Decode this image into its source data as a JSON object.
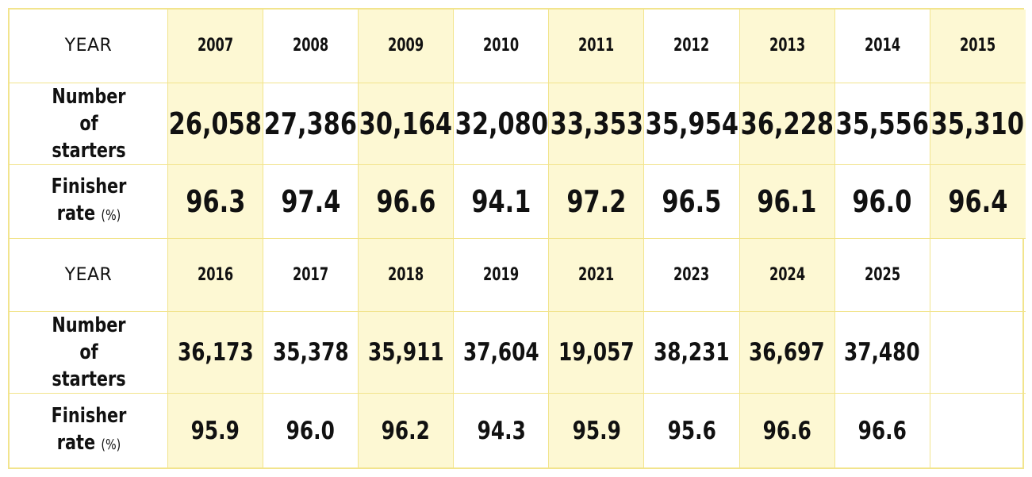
{
  "chart_data": {
    "type": "table",
    "colors": {
      "highlight": "#fdf8d3",
      "border": "#f2e48d"
    },
    "highlight_columns": [
      1,
      3,
      5,
      7,
      9
    ],
    "blocks": [
      {
        "year_label": "YEAR",
        "starters_label": "Number of starters",
        "finisher_label": "Finisher rate",
        "finisher_unit": "(%)",
        "years": [
          "2007",
          "2008",
          "2009",
          "2010",
          "2011",
          "2012",
          "2013",
          "2014",
          "2015"
        ],
        "starters": [
          "26,058",
          "27,386",
          "30,164",
          "32,080",
          "33,353",
          "35,954",
          "36,228",
          "35,556",
          "35,310"
        ],
        "finisher_rate": [
          "96.3",
          "97.4",
          "96.6",
          "94.1",
          "97.2",
          "96.5",
          "96.1",
          "96.0",
          "96.4"
        ]
      },
      {
        "year_label": "YEAR",
        "starters_label": "Number of starters",
        "finisher_label": "Finisher rate",
        "finisher_unit": "(%)",
        "years": [
          "2016",
          "2017",
          "2018",
          "2019",
          "2021",
          "2023",
          "2024",
          "2025",
          ""
        ],
        "starters": [
          "36,173",
          "35,378",
          "35,911",
          "37,604",
          "19,057",
          "38,231",
          "36,697",
          "37,480",
          ""
        ],
        "finisher_rate": [
          "95.9",
          "96.0",
          "96.2",
          "94.3",
          "95.9",
          "95.6",
          "96.6",
          "96.6",
          ""
        ]
      }
    ]
  }
}
